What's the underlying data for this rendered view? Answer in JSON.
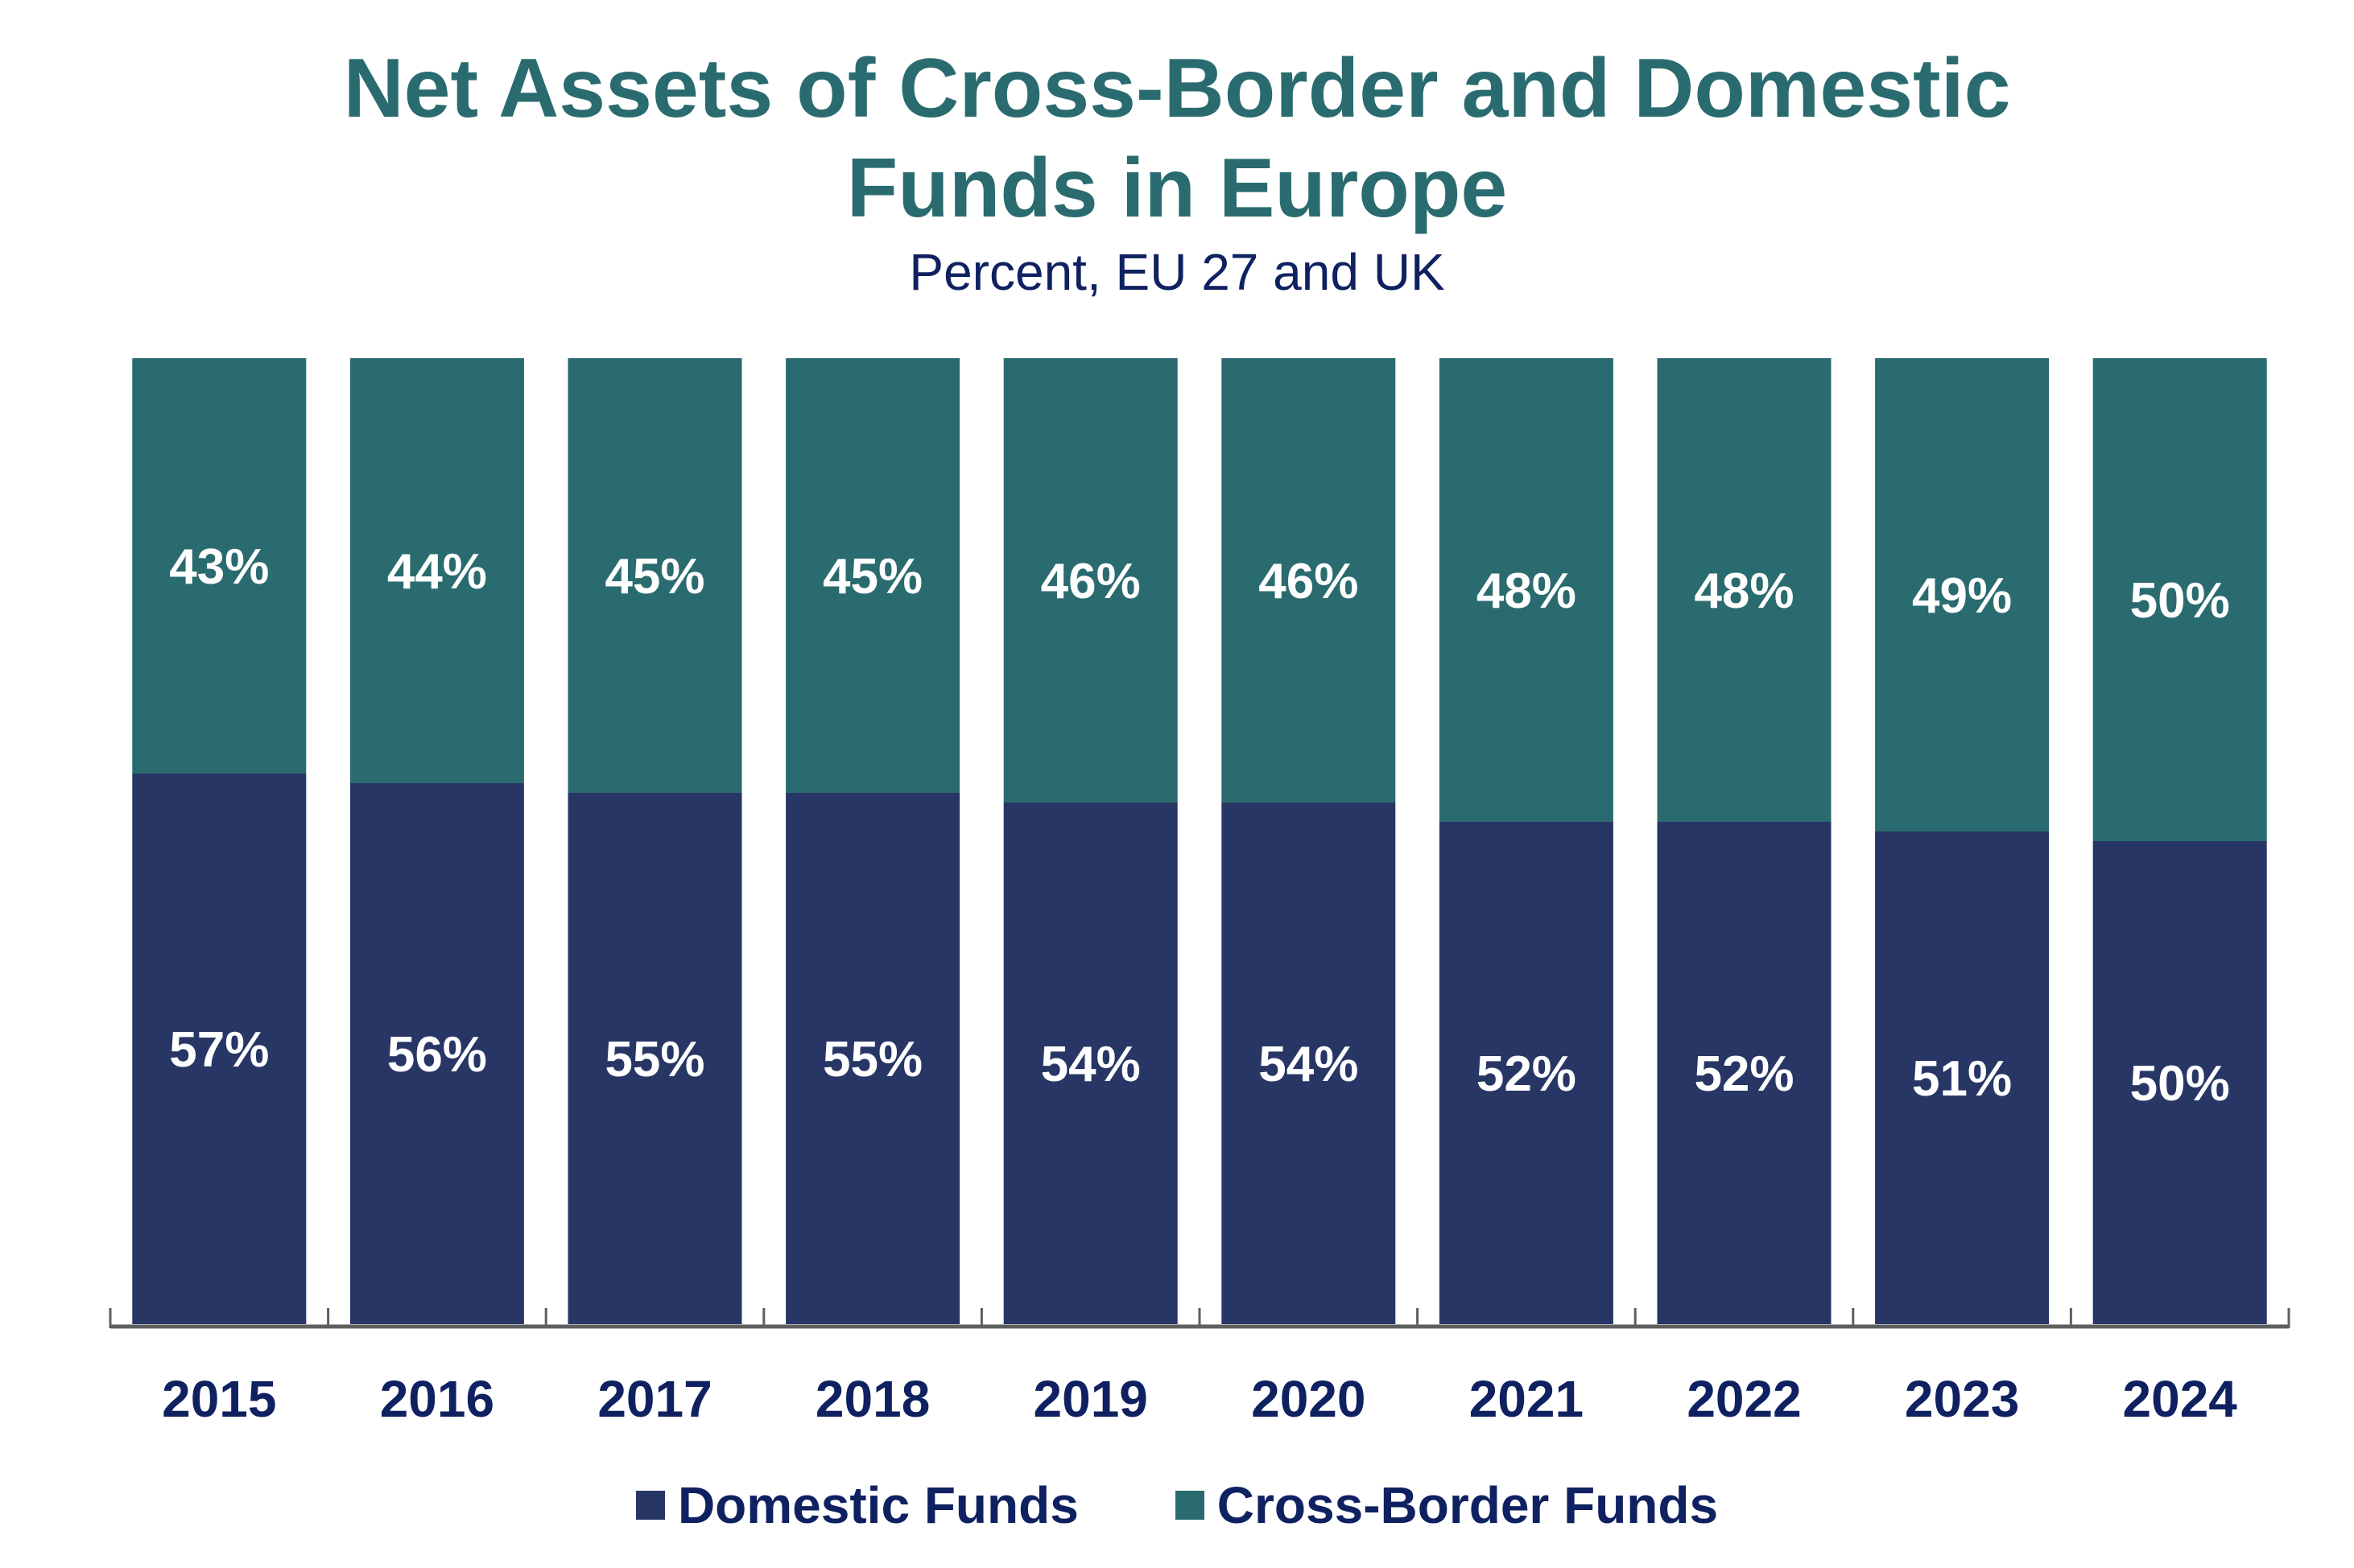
{
  "chart_data": {
    "type": "bar",
    "stacked": true,
    "title_lines": [
      "Net Assets of Cross-Border and Domestic",
      "Funds in Europe"
    ],
    "title": "Net Assets of Cross-Border and Domestic Funds in Europe",
    "subtitle": "Percent, EU 27 and UK",
    "xlabel": "",
    "ylabel": "",
    "ylim": [
      0,
      100
    ],
    "grid": false,
    "legend_position": "bottom",
    "categories": [
      "2015",
      "2016",
      "2017",
      "2018",
      "2019",
      "2020",
      "2021",
      "2022",
      "2023",
      "2024"
    ],
    "series": [
      {
        "name": "Domestic Funds",
        "color": "#283665",
        "values": [
          57,
          56,
          55,
          55,
          54,
          54,
          52,
          52,
          51,
          50
        ],
        "labels": [
          "57%",
          "56%",
          "55%",
          "55%",
          "54%",
          "54%",
          "52%",
          "52%",
          "51%",
          "50%"
        ]
      },
      {
        "name": "Cross-Border Funds",
        "color": "#2a6b6f",
        "values": [
          43,
          44,
          45,
          45,
          46,
          46,
          48,
          48,
          49,
          50
        ],
        "labels": [
          "43%",
          "44%",
          "45%",
          "45%",
          "46%",
          "46%",
          "48%",
          "48%",
          "49%",
          "50%"
        ]
      }
    ]
  },
  "legend": [
    {
      "label": "Domestic Funds",
      "color": "#283665"
    },
    {
      "label": "Cross-Border Funds",
      "color": "#2a6b6f"
    }
  ]
}
